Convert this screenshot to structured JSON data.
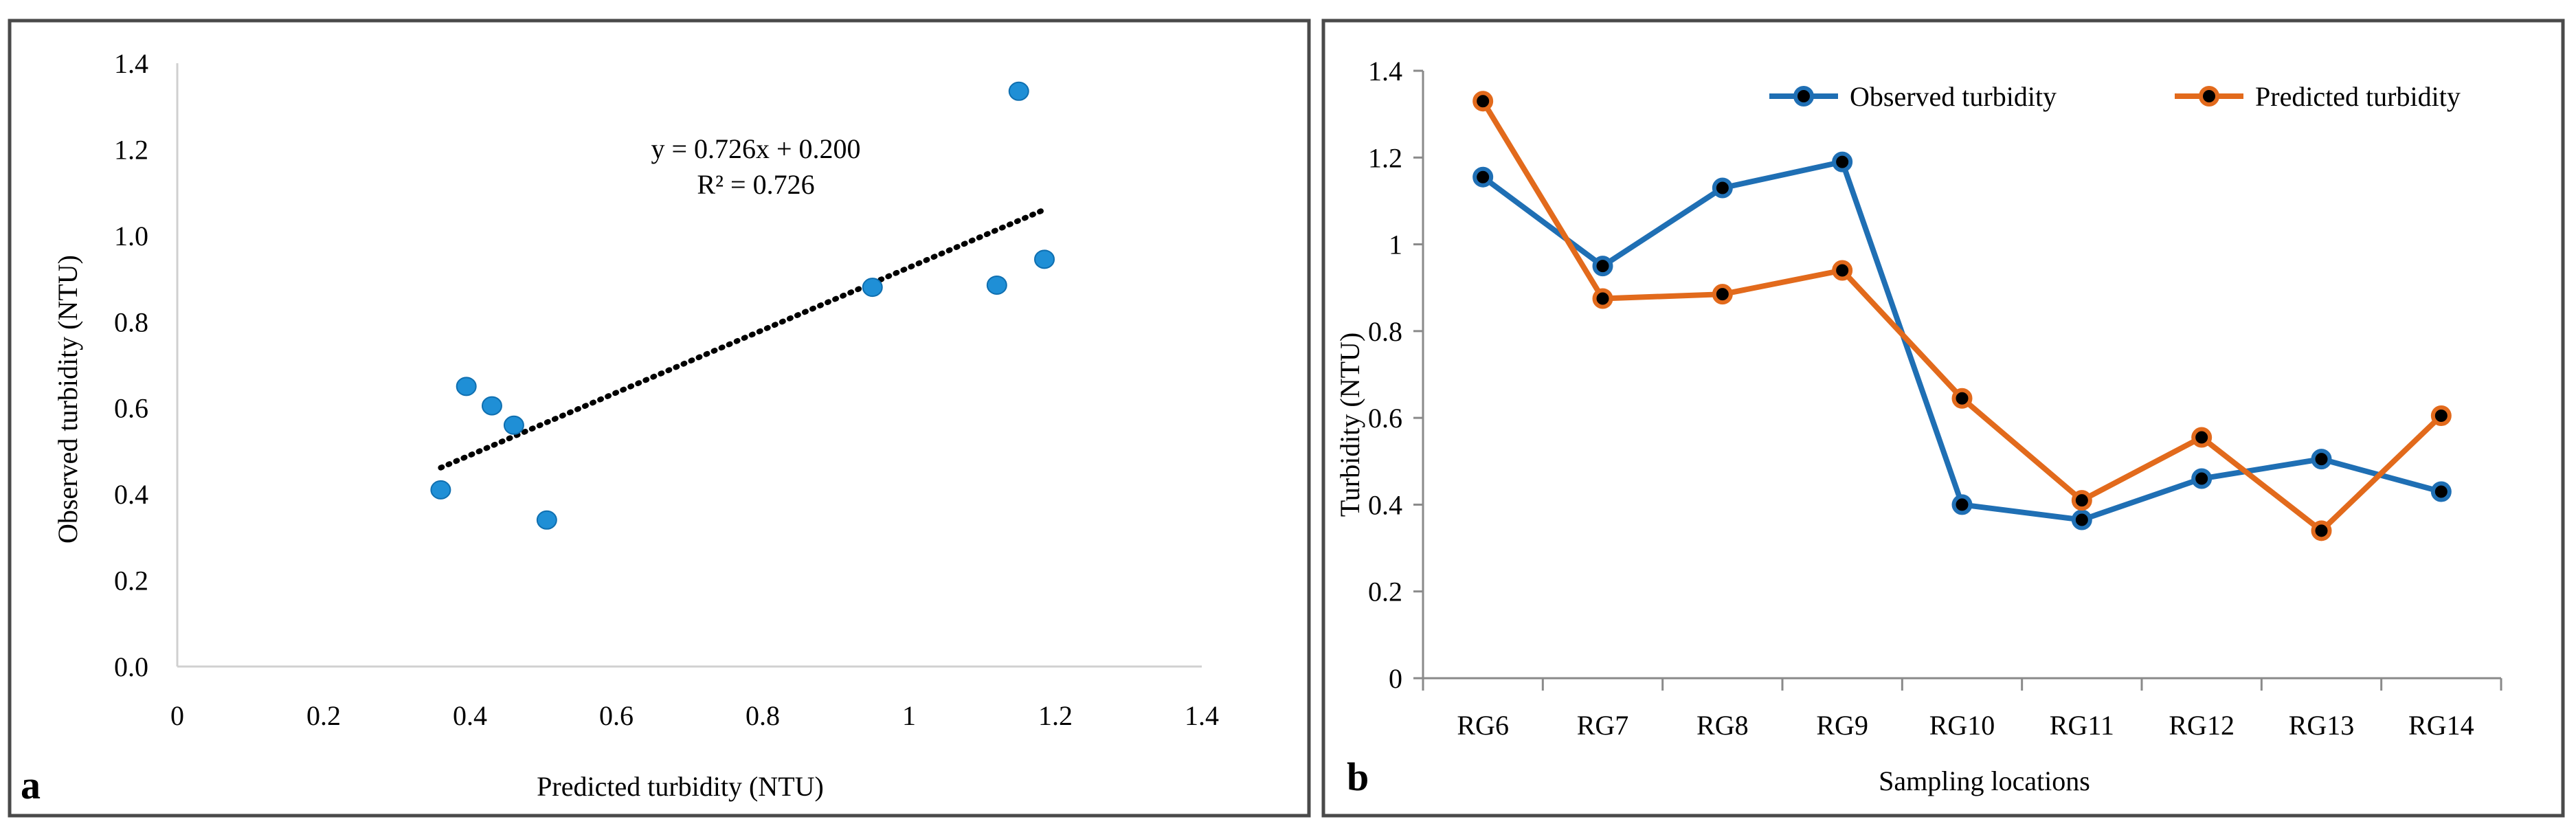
{
  "chart_data": [
    {
      "panel_label": "a",
      "type": "scatter",
      "xlabel": "Predicted turbidity  (NTU)",
      "ylabel": "Observed turbidity  (NTU)",
      "xlim": [
        0,
        1.4
      ],
      "ylim": [
        0,
        1.4
      ],
      "x_ticks": [
        0,
        0.2,
        0.4,
        0.6,
        0.8,
        1,
        1.2,
        1.4
      ],
      "x_tick_labels": [
        "0",
        "0.2",
        "0.4",
        "0.6",
        "0.8",
        "1",
        "1.2",
        "1.4"
      ],
      "y_ticks": [
        0,
        0.2,
        0.4,
        0.6,
        0.8,
        1.0,
        1.2,
        1.4
      ],
      "y_tick_labels": [
        "0.0",
        "0.2",
        "0.4",
        "0.6",
        "0.8",
        "1.0",
        "1.2",
        "1.4"
      ],
      "grid": false,
      "marker_color": "#1f8fd6",
      "points": [
        {
          "x": 0.36,
          "y": 0.41
        },
        {
          "x": 0.395,
          "y": 0.65
        },
        {
          "x": 0.43,
          "y": 0.605
        },
        {
          "x": 0.46,
          "y": 0.56
        },
        {
          "x": 0.505,
          "y": 0.34
        },
        {
          "x": 0.95,
          "y": 0.88
        },
        {
          "x": 1.12,
          "y": 0.885
        },
        {
          "x": 1.15,
          "y": 1.335
        },
        {
          "x": 1.185,
          "y": 0.945
        }
      ],
      "trendline": {
        "slope": 0.726,
        "intercept": 0.2,
        "x_range": [
          0.36,
          1.185
        ],
        "style": "dotted",
        "color": "#000000"
      },
      "equation_text": "y = 0.726x + 0.200",
      "r2_text": "R² = 0.726"
    },
    {
      "panel_label": "b",
      "type": "line",
      "xlabel": "Sampling locations",
      "ylabel": "Turbidity (NTU)",
      "ylim": [
        0,
        1.4
      ],
      "y_ticks": [
        0,
        0.2,
        0.4,
        0.6,
        0.8,
        1,
        1.2,
        1.4
      ],
      "y_tick_labels": [
        "0",
        "0.2",
        "0.4",
        "0.6",
        "0.8",
        "1",
        "1.2",
        "1.4"
      ],
      "grid": false,
      "legend_position": "top",
      "categories": [
        "RG6",
        "RG7",
        "RG8",
        "RG9",
        "RG10",
        "RG11",
        "RG12",
        "RG13",
        "RG14"
      ],
      "series": [
        {
          "name": "Observed turbidity",
          "color": "#1f6fb4",
          "values": [
            1.155,
            0.95,
            1.13,
            1.19,
            0.4,
            0.365,
            0.46,
            0.505,
            0.43
          ]
        },
        {
          "name": "Predicted turbidity",
          "color": "#e26a1c",
          "values": [
            1.33,
            0.875,
            0.885,
            0.94,
            0.645,
            0.41,
            0.555,
            0.34,
            0.605
          ]
        }
      ],
      "marker_fill": "#000000"
    }
  ]
}
